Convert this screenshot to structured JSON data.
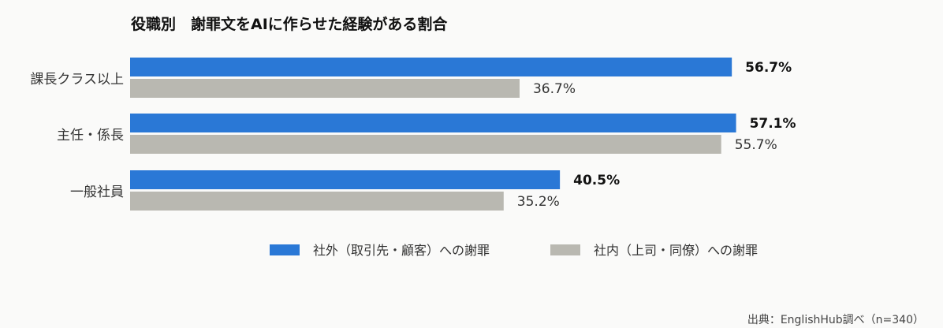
{
  "chart_data": {
    "type": "bar",
    "orientation": "horizontal",
    "title": "役職別　謝罪文をAIに作らせた経験がある割合",
    "categories": [
      "課長クラス以上",
      "主任・係長",
      "一般社員"
    ],
    "series": [
      {
        "name": "社外（取引先・顧客）への謝罪",
        "values": [
          56.7,
          57.1,
          40.5
        ],
        "color": "#2a78d6"
      },
      {
        "name": "社内（上司・同僚）への謝罪",
        "values": [
          36.7,
          55.7,
          35.2
        ],
        "color": "#b9b8b1"
      }
    ],
    "value_labels": [
      [
        "56.7%",
        "57.1%",
        "40.5%"
      ],
      [
        "36.7%",
        "55.7%",
        "35.2%"
      ]
    ],
    "xlim": [
      0,
      100
    ],
    "grid": false,
    "legend_position": "bottom-center",
    "source": "出典：EnglishHub調べ（n=340）"
  }
}
